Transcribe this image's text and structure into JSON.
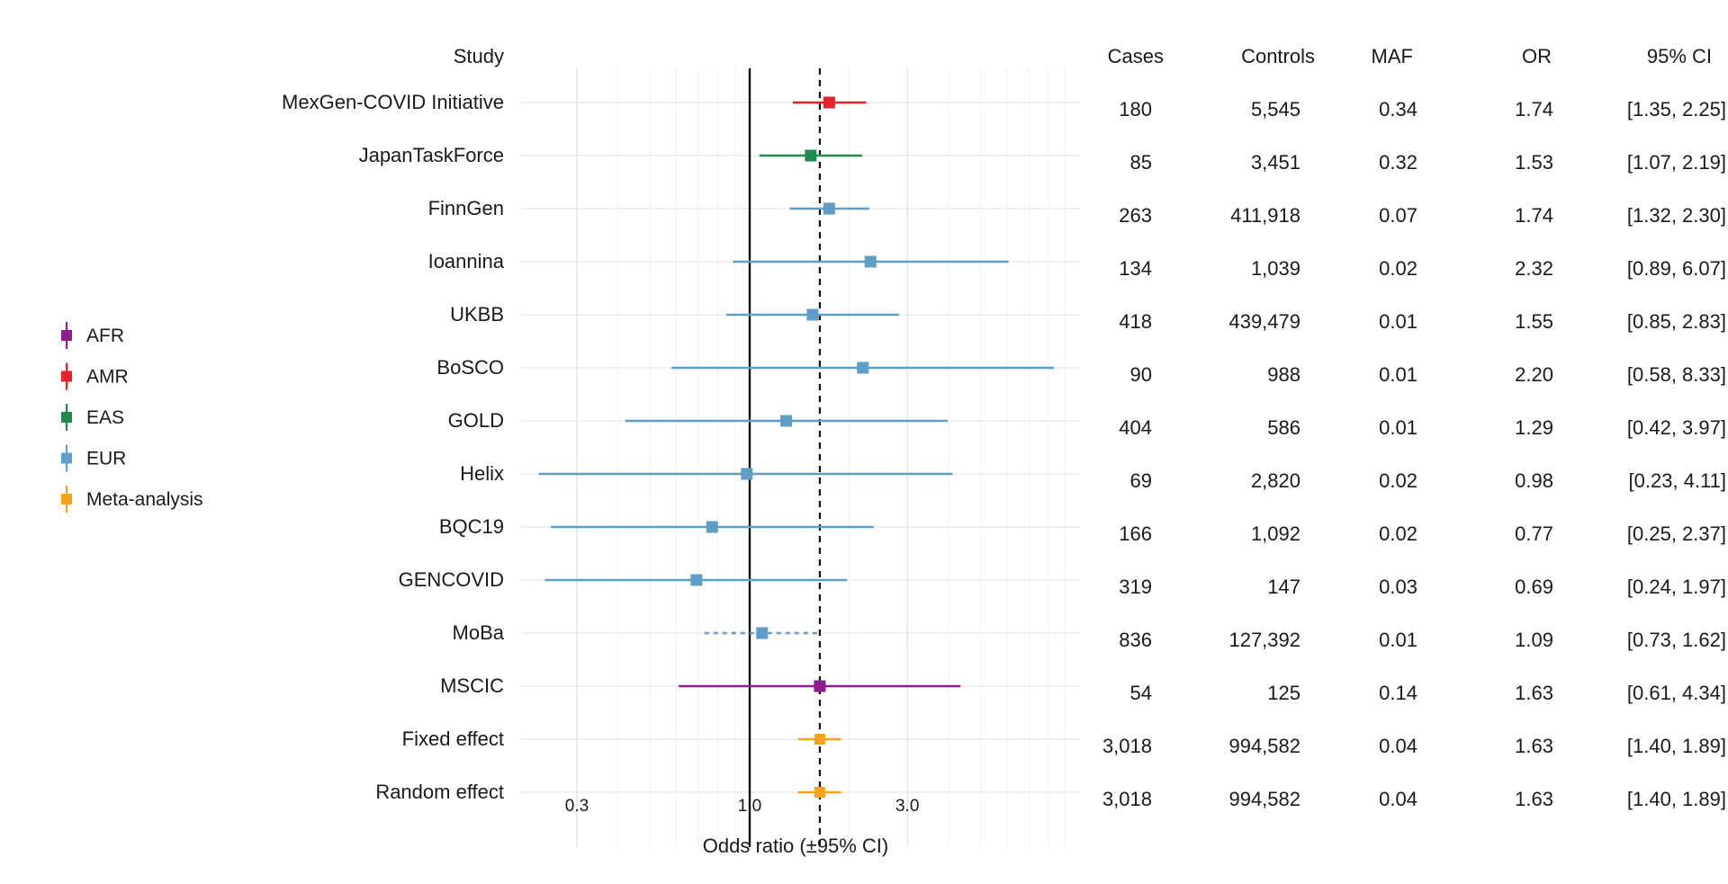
{
  "chart_data": {
    "type": "forest",
    "xscale": "log",
    "xlabel": "Odds ratio (±95% CI)",
    "xlim": [
      0.2,
      10
    ],
    "xticks": [
      {
        "value": 0.3,
        "label": "0.3"
      },
      {
        "value": 1.0,
        "label": "1.0"
      },
      {
        "value": 3.0,
        "label": "3.0"
      }
    ],
    "reference_line": 1.0,
    "pooled_line": 1.63,
    "columns": {
      "study": "Study",
      "cases": "Cases",
      "controls": "Controls",
      "maf": "MAF",
      "or": "OR",
      "ci": "95% CI"
    },
    "legend": {
      "position": "left",
      "items": [
        {
          "label": "AFR",
          "color": "#8e1e8e"
        },
        {
          "label": "AMR",
          "color": "#e8202a"
        },
        {
          "label": "EAS",
          "color": "#1f8a4c"
        },
        {
          "label": "EUR",
          "color": "#5f9ec6"
        },
        {
          "label": "Meta-analysis",
          "color": "#f5a31a"
        }
      ]
    },
    "rows": [
      {
        "study": "MexGen-COVID Initiative",
        "group": "AMR",
        "or": 1.74,
        "lo": 1.35,
        "hi": 2.25,
        "cases": "180",
        "controls": "5,545",
        "maf": "0.34",
        "or_text": "1.74",
        "ci_text": "[1.35, 2.25]",
        "dashed": false
      },
      {
        "study": "JapanTaskForce",
        "group": "EAS",
        "or": 1.53,
        "lo": 1.07,
        "hi": 2.19,
        "cases": "85",
        "controls": "3,451",
        "maf": "0.32",
        "or_text": "1.53",
        "ci_text": "[1.07, 2.19]",
        "dashed": false
      },
      {
        "study": "FinnGen",
        "group": "EUR",
        "or": 1.74,
        "lo": 1.32,
        "hi": 2.3,
        "cases": "263",
        "controls": "411,918",
        "maf": "0.07",
        "or_text": "1.74",
        "ci_text": "[1.32, 2.30]",
        "dashed": false
      },
      {
        "study": "Ioannina",
        "group": "EUR",
        "or": 2.32,
        "lo": 0.89,
        "hi": 6.07,
        "cases": "134",
        "controls": "1,039",
        "maf": "0.02",
        "or_text": "2.32",
        "ci_text": "[0.89, 6.07]",
        "dashed": false
      },
      {
        "study": "UKBB",
        "group": "EUR",
        "or": 1.55,
        "lo": 0.85,
        "hi": 2.83,
        "cases": "418",
        "controls": "439,479",
        "maf": "0.01",
        "or_text": "1.55",
        "ci_text": "[0.85, 2.83]",
        "dashed": false
      },
      {
        "study": "BoSCO",
        "group": "EUR",
        "or": 2.2,
        "lo": 0.58,
        "hi": 8.33,
        "cases": "90",
        "controls": "988",
        "maf": "0.01",
        "or_text": "2.20",
        "ci_text": "[0.58, 8.33]",
        "dashed": false
      },
      {
        "study": "GOLD",
        "group": "EUR",
        "or": 1.29,
        "lo": 0.42,
        "hi": 3.97,
        "cases": "404",
        "controls": "586",
        "maf": "0.01",
        "or_text": "1.29",
        "ci_text": "[0.42, 3.97]",
        "dashed": false
      },
      {
        "study": "Helix",
        "group": "EUR",
        "or": 0.98,
        "lo": 0.23,
        "hi": 4.11,
        "cases": "69",
        "controls": "2,820",
        "maf": "0.02",
        "or_text": "0.98",
        "ci_text": "[0.23, 4.11]",
        "dashed": false
      },
      {
        "study": "BQC19",
        "group": "EUR",
        "or": 0.77,
        "lo": 0.25,
        "hi": 2.37,
        "cases": "166",
        "controls": "1,092",
        "maf": "0.02",
        "or_text": "0.77",
        "ci_text": "[0.25, 2.37]",
        "dashed": false
      },
      {
        "study": "GENCOVID",
        "group": "EUR",
        "or": 0.69,
        "lo": 0.24,
        "hi": 1.97,
        "cases": "319",
        "controls": "147",
        "maf": "0.03",
        "or_text": "0.69",
        "ci_text": "[0.24, 1.97]",
        "dashed": false
      },
      {
        "study": "MoBa",
        "group": "EUR",
        "or": 1.09,
        "lo": 0.73,
        "hi": 1.62,
        "cases": "836",
        "controls": "127,392",
        "maf": "0.01",
        "or_text": "1.09",
        "ci_text": "[0.73, 1.62]",
        "dashed": true
      },
      {
        "study": "MSCIC",
        "group": "AFR",
        "or": 1.63,
        "lo": 0.61,
        "hi": 4.34,
        "cases": "54",
        "controls": "125",
        "maf": "0.14",
        "or_text": "1.63",
        "ci_text": "[0.61, 4.34]",
        "dashed": false
      },
      {
        "study": "Fixed effect",
        "group": "Meta-analysis",
        "or": 1.63,
        "lo": 1.4,
        "hi": 1.89,
        "cases": "3,018",
        "controls": "994,582",
        "maf": "0.04",
        "or_text": "1.63",
        "ci_text": "[1.40, 1.89]",
        "dashed": false
      },
      {
        "study": "Random effect",
        "group": "Meta-analysis",
        "or": 1.63,
        "lo": 1.4,
        "hi": 1.89,
        "cases": "3,018",
        "controls": "994,582",
        "maf": "0.04",
        "or_text": "1.63",
        "ci_text": "[1.40, 1.89]",
        "dashed": false
      }
    ]
  }
}
